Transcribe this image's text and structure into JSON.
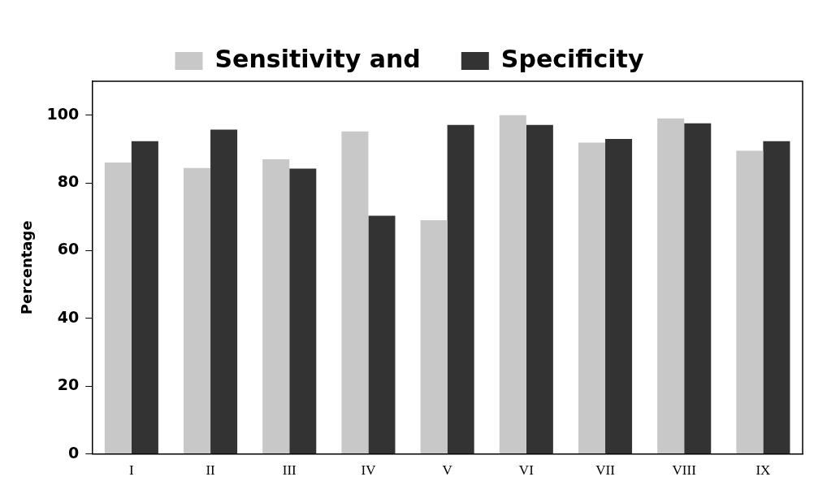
{
  "chart_data": {
    "type": "bar",
    "ylabel": "Percentage",
    "categories": [
      "I",
      "II",
      "III",
      "IV",
      "V",
      "VI",
      "VII",
      "VIII",
      "IX"
    ],
    "series": [
      {
        "name": "Sensitivity and",
        "color": "#c8c8c8",
        "values": [
          86,
          84.4,
          87,
          95.2,
          69,
          100,
          91.9,
          99,
          89.5
        ]
      },
      {
        "name": "Specificity",
        "color": "#333333",
        "values": [
          92.3,
          95.7,
          84.2,
          70.3,
          97.1,
          97.1,
          93,
          97.6,
          92.3
        ]
      }
    ],
    "ylim": [
      0,
      110
    ],
    "yticks": [
      0,
      20,
      40,
      60,
      80,
      100
    ],
    "grid": false,
    "legend": "top"
  }
}
